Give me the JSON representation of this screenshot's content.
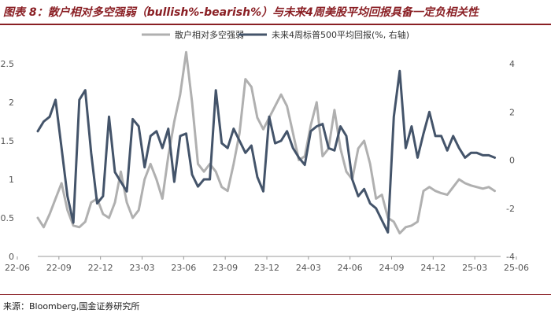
{
  "header": {
    "title": "图表 8：散户相对多空强弱（bullish%-bearish%）与未来4周美股平均回报具备一定负相关性"
  },
  "footer": {
    "source": "来源：Bloomberg,国金证券研究所"
  },
  "colors": {
    "series1": "#b0b0b0",
    "series2": "#44546a",
    "accent": "#8a1f24"
  },
  "chart_data": {
    "type": "line",
    "title": "图表 8：散户相对多空强弱（bullish%-bearish%）与未来4周美股平均回报具备一定负相关性",
    "legend_position": "top",
    "x_tick_labels": [
      "22-06",
      "22-09",
      "22-12",
      "23-03",
      "23-06",
      "23-09",
      "23-12",
      "24-03",
      "24-06",
      "24-09",
      "24-12",
      "25-03",
      "25-06"
    ],
    "left_axis": {
      "ylim": [
        0,
        2.5
      ],
      "ticks": [
        "0",
        "0.5",
        "1",
        "1.5",
        "2",
        "2.5"
      ]
    },
    "right_axis": {
      "ylim": [
        -4,
        4
      ],
      "ticks": [
        "-4",
        "-2",
        "0",
        "2",
        "4"
      ]
    },
    "x_range": [
      0,
      156
    ],
    "series": [
      {
        "name": "散户相对多空强弱",
        "axis": "left",
        "x": [
          0,
          2,
          4,
          6,
          8,
          10,
          12,
          14,
          16,
          18,
          20,
          22,
          24,
          26,
          28,
          30,
          32,
          34,
          36,
          38,
          40,
          42,
          44,
          46,
          48,
          50,
          52,
          54,
          56,
          58,
          60,
          62,
          64,
          66,
          68,
          70,
          72,
          74,
          76,
          78,
          80,
          82,
          84,
          86,
          88,
          90,
          92,
          94,
          96,
          98,
          100,
          102,
          104,
          106,
          108,
          110,
          112,
          114,
          116,
          118,
          120,
          122,
          124,
          126,
          128,
          130,
          132,
          134,
          136,
          138,
          140,
          142,
          144,
          146,
          148,
          150,
          152,
          154
        ],
        "values": [
          0.5,
          0.38,
          0.55,
          0.75,
          0.95,
          0.6,
          0.4,
          0.38,
          0.45,
          0.7,
          0.75,
          0.55,
          0.5,
          0.7,
          1.1,
          0.7,
          0.5,
          0.6,
          1.0,
          1.2,
          1.0,
          0.75,
          1.3,
          1.75,
          2.1,
          2.65,
          2.0,
          1.2,
          1.1,
          1.2,
          1.1,
          0.9,
          0.85,
          1.2,
          1.6,
          2.3,
          2.2,
          1.8,
          1.65,
          1.8,
          1.95,
          2.1,
          1.95,
          1.6,
          1.25,
          1.3,
          1.7,
          2.0,
          1.3,
          1.4,
          1.9,
          1.4,
          1.1,
          1.0,
          1.4,
          1.5,
          1.2,
          0.75,
          0.8,
          0.5,
          0.45,
          0.3,
          0.38,
          0.4,
          0.45,
          0.85,
          0.9,
          0.85,
          0.82,
          0.8,
          0.9,
          1.0,
          0.95,
          0.92,
          0.9,
          0.88,
          0.9,
          0.85
        ]
      },
      {
        "name": "未来4周标普500平均回报(%, 右轴)",
        "axis": "right",
        "x": [
          0,
          2,
          4,
          6,
          8,
          10,
          12,
          14,
          16,
          18,
          20,
          22,
          24,
          26,
          28,
          30,
          32,
          34,
          36,
          38,
          40,
          42,
          44,
          46,
          48,
          50,
          52,
          54,
          56,
          58,
          60,
          62,
          64,
          66,
          68,
          70,
          72,
          74,
          76,
          78,
          80,
          82,
          84,
          86,
          88,
          90,
          92,
          94,
          96,
          98,
          100,
          102,
          104,
          106,
          108,
          110,
          112,
          114,
          116,
          118,
          120,
          122,
          124,
          126,
          128,
          130,
          132,
          134,
          136,
          138,
          140,
          142,
          144,
          146,
          148,
          150,
          152,
          154
        ],
        "values": [
          1.2,
          1.6,
          1.8,
          2.5,
          0.5,
          -1.5,
          -2.6,
          2.5,
          2.9,
          0.3,
          -1.8,
          -1.5,
          1.8,
          -0.5,
          -0.9,
          -1.3,
          1.7,
          1.4,
          -0.3,
          1.0,
          1.2,
          0.5,
          1.3,
          -0.9,
          1.0,
          1.1,
          -0.6,
          -1.1,
          -0.8,
          -0.8,
          2.9,
          0.7,
          0.5,
          1.3,
          0.8,
          0.3,
          0.6,
          -0.7,
          -1.3,
          1.8,
          0.7,
          0.8,
          1.2,
          0.5,
          0.1,
          -0.2,
          1.2,
          1.4,
          1.5,
          0.5,
          0.4,
          1.4,
          1.0,
          -0.8,
          -1.5,
          -1.2,
          -1.8,
          -2.0,
          -2.5,
          -3.0,
          1.8,
          3.7,
          0.5,
          1.4,
          0.1,
          1.1,
          2.0,
          1.0,
          1.0,
          0.4,
          1.0,
          0.5,
          0.1,
          0.3,
          0.3,
          0.2,
          0.2,
          0.1
        ]
      }
    ]
  }
}
